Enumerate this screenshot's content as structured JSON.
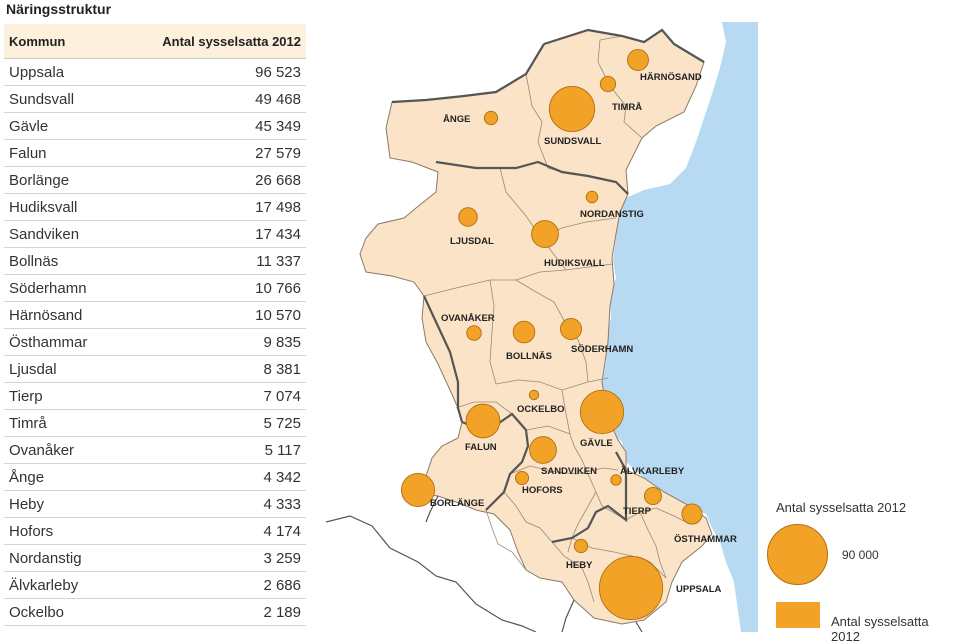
{
  "title": "Näringsstruktur",
  "table": {
    "headers": {
      "kommun": "Kommun",
      "value": "Antal sysselsatta 2012"
    },
    "rows": [
      {
        "kommun": "Uppsala",
        "value": "96 523"
      },
      {
        "kommun": "Sundsvall",
        "value": "49 468"
      },
      {
        "kommun": "Gävle",
        "value": "45 349"
      },
      {
        "kommun": "Falun",
        "value": "27 579"
      },
      {
        "kommun": "Borlänge",
        "value": "26 668"
      },
      {
        "kommun": "Hudiksvall",
        "value": "17 498"
      },
      {
        "kommun": "Sandviken",
        "value": "17 434"
      },
      {
        "kommun": "Bollnäs",
        "value": "11 337"
      },
      {
        "kommun": "Söderhamn",
        "value": "10 766"
      },
      {
        "kommun": "Härnösand",
        "value": "10 570"
      },
      {
        "kommun": "Östhammar",
        "value": "9 835"
      },
      {
        "kommun": "Ljusdal",
        "value": "8 381"
      },
      {
        "kommun": "Tierp",
        "value": "7 074"
      },
      {
        "kommun": "Timrå",
        "value": "5 725"
      },
      {
        "kommun": "Ovanåker",
        "value": "5 117"
      },
      {
        "kommun": "Ånge",
        "value": "4 342"
      },
      {
        "kommun": "Heby",
        "value": "4 333"
      },
      {
        "kommun": "Hofors",
        "value": "4 174"
      },
      {
        "kommun": "Nordanstig",
        "value": "3 259"
      },
      {
        "kommun": "Älvkarleby",
        "value": "2 686"
      },
      {
        "kommun": "Ockelbo",
        "value": "2 189"
      }
    ]
  },
  "map": {
    "colors": {
      "land": "#fae3c6",
      "sea": "#b7d9f1",
      "bubble": "#f2a227"
    },
    "labels": {
      "ange": "ÅNGE",
      "sundsvall": "SUNDSVALL",
      "timra": "TIMRÅ",
      "harnosand": "HÄRNÖSAND",
      "nordanstig": "NORDANSTIG",
      "ljusdal": "LJUSDAL",
      "hudiksvall": "HUDIKSVALL",
      "ovanaker": "OVANÅKER",
      "bollnas": "BOLLNÄS",
      "soderhamn": "SÖDERHAMN",
      "ockelbo": "OCKELBO",
      "falun": "FALUN",
      "gavle": "GÄVLE",
      "sandviken": "SANDVIKEN",
      "alvkarleby": "ÄLVKARLEBY",
      "hofors": "HOFORS",
      "borlange": "BORLÄNGE",
      "tierp": "TIERP",
      "osthammar": "ÖSTHAMMAR",
      "heby": "HEBY",
      "uppsala": "UPPSALA"
    },
    "bubble_values": {
      "uppsala": 96523,
      "sundsvall": 49468,
      "gavle": 45349,
      "falun": 27579,
      "borlange": 26668,
      "hudiksvall": 17498,
      "sandviken": 17434,
      "bollnas": 11337,
      "soderhamn": 10766,
      "harnosand": 10570,
      "osthammar": 9835,
      "ljusdal": 8381,
      "tierp": 7074,
      "timra": 5725,
      "ovanaker": 5117,
      "ange": 4342,
      "heby": 4333,
      "hofors": 4174,
      "nordanstig": 3259,
      "alvkarleby": 2686,
      "ockelbo": 2189
    }
  },
  "legend": {
    "title": "Antal sysselsatta 2012",
    "reference_value": 90000,
    "reference_label": "90 000",
    "swatch_label": "Antal sysselsatta 2012"
  }
}
